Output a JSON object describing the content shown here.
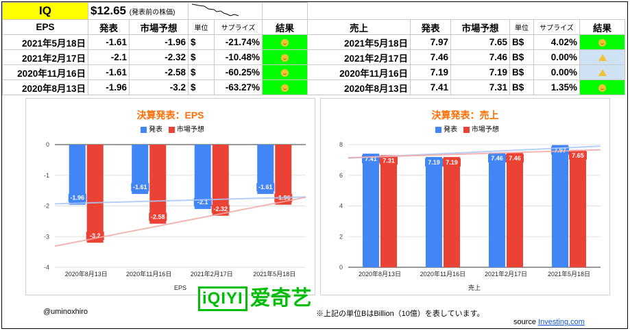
{
  "top": {
    "ticker": "IQ",
    "price": "$12.65",
    "price_note": "(発表前の株価)"
  },
  "eps_headers": [
    "EPS",
    "発表",
    "市場予想",
    "単位",
    "サプライズ",
    "結果"
  ],
  "sales_headers": [
    "売上",
    "発表",
    "市場予想",
    "単位",
    "サプライズ",
    "結果"
  ],
  "eps_rows": [
    {
      "date": "2021年5月18日",
      "actual": "-1.61",
      "forecast": "-1.96",
      "unit": "$",
      "surprise": "-21.74%",
      "result": "smile"
    },
    {
      "date": "2021年2月17日",
      "actual": "-2.1",
      "forecast": "-2.32",
      "unit": "$",
      "surprise": "-10.48%",
      "result": "smile"
    },
    {
      "date": "2020年11月16日",
      "actual": "-1.61",
      "forecast": "-2.58",
      "unit": "$",
      "surprise": "-60.25%",
      "result": "smile"
    },
    {
      "date": "2020年8月13日",
      "actual": "-1.96",
      "forecast": "-3.2",
      "unit": "$",
      "surprise": "-63.27%",
      "result": "smile"
    }
  ],
  "sales_rows": [
    {
      "date": "2021年5月18日",
      "actual": "7.97",
      "forecast": "7.65",
      "unit": "B$",
      "surprise": "4.02%",
      "result": "smile"
    },
    {
      "date": "2021年2月17日",
      "actual": "7.46",
      "forecast": "7.46",
      "unit": "B$",
      "surprise": "0.00%",
      "result": "warning"
    },
    {
      "date": "2020年11月16日",
      "actual": "7.19",
      "forecast": "7.19",
      "unit": "B$",
      "surprise": "0.00%",
      "result": "warning"
    },
    {
      "date": "2020年8月13日",
      "actual": "7.41",
      "forecast": "7.31",
      "unit": "B$",
      "surprise": "1.35%",
      "result": "smile"
    }
  ],
  "colors": {
    "actual": "#4285f4",
    "forecast": "#ea4335",
    "title": "#ff6d01",
    "good": "#00ff00",
    "neutral": "#cfe2f3"
  },
  "chart_data": [
    {
      "type": "bar",
      "title": "決算発表：EPS",
      "xlabel": "EPS",
      "categories": [
        "2020年8月13日",
        "2020年11月16日",
        "2021年2月17日",
        "2021年5月18日"
      ],
      "series": [
        {
          "name": "発表",
          "values": [
            -1.96,
            -1.61,
            -2.1,
            -1.61
          ]
        },
        {
          "name": "市場予想",
          "values": [
            -3.2,
            -2.58,
            -2.32,
            -1.96
          ]
        }
      ],
      "ylim": [
        -4,
        0
      ],
      "yticks": [
        0,
        -1,
        -2,
        -3,
        -4
      ],
      "trendlines": true,
      "legend": "top"
    },
    {
      "type": "bar",
      "title": "決算発表：売上",
      "xlabel": "売上",
      "categories": [
        "2020年8月13日",
        "2020年11月16日",
        "2021年2月17日",
        "2021年5月18日"
      ],
      "series": [
        {
          "name": "発表",
          "values": [
            7.41,
            7.19,
            7.46,
            7.97
          ]
        },
        {
          "name": "市場予想",
          "values": [
            7.31,
            7.19,
            7.46,
            7.65
          ]
        }
      ],
      "ylim": [
        0,
        8
      ],
      "yticks": [
        0,
        2,
        4,
        6,
        8
      ],
      "trendlines": true,
      "legend": "top"
    }
  ],
  "footer": {
    "author": "@uminoxhiro",
    "note": "※上記の単位BはBillion（10億）を表しています。",
    "source_label": "source",
    "source_link": "Investing.com",
    "logo_box": "iQIYI",
    "logo_text": "爱奇艺"
  }
}
